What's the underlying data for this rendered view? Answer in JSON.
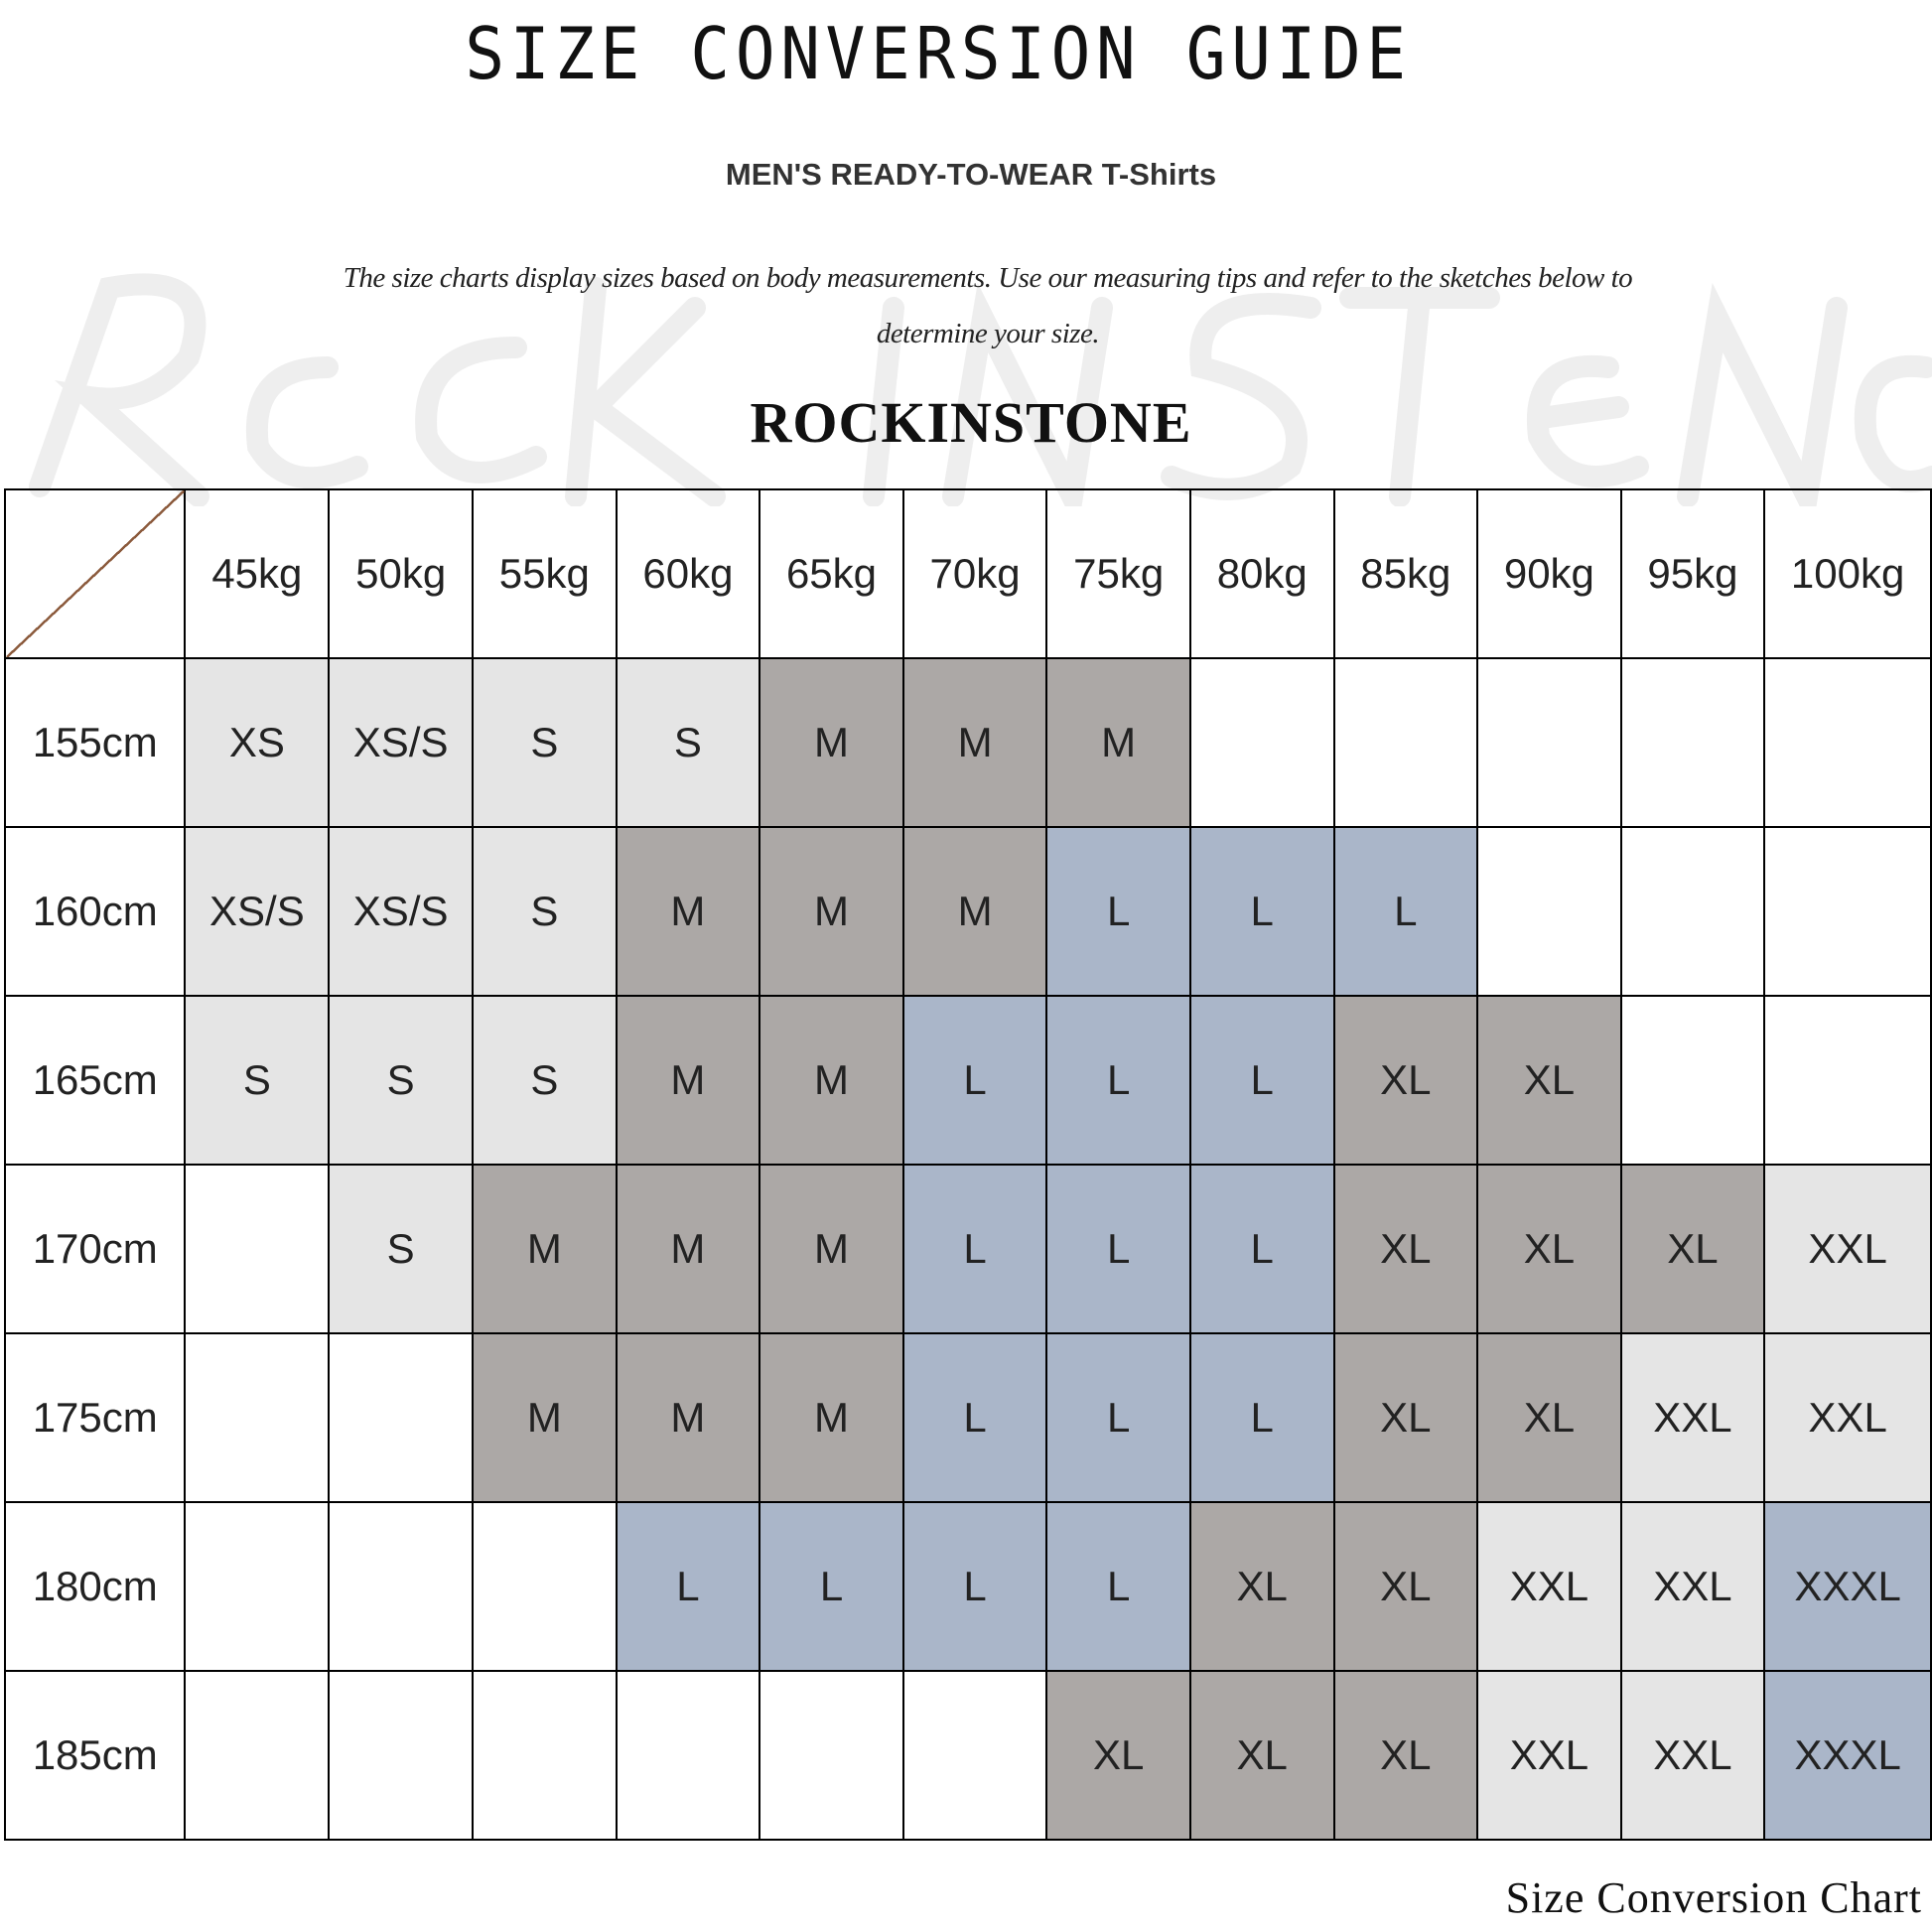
{
  "title": "SIZE CONVERSION GUIDE",
  "subtitle": "MEN'S READY-TO-WEAR T-Shirts",
  "description": "The size charts display sizes based on body measurements. Use our measuring tips and refer to the sketches below to determine your size.",
  "watermark": "Rockinstone",
  "brand": "ROCKINSTONE",
  "footer": "Size Conversion Chart",
  "size_colors": {
    "XS": "#e5e5e5",
    "XS/S": "#e5e5e5",
    "S": "#e5e5e5",
    "M": "#aca8a6",
    "L": "#aab6c9",
    "XL": "#aca8a6",
    "XXL": "#e5e5e5",
    "XXXL": "#aab6c9"
  },
  "table": {
    "weights": [
      "45kg",
      "50kg",
      "55kg",
      "60kg",
      "65kg",
      "70kg",
      "75kg",
      "80kg",
      "85kg",
      "90kg",
      "95kg",
      "100kg"
    ],
    "rows": [
      {
        "height": "155cm",
        "sizes": [
          "XS",
          "XS/S",
          "S",
          "S",
          "M",
          "M",
          "M",
          "",
          "",
          "",
          "",
          ""
        ]
      },
      {
        "height": "160cm",
        "sizes": [
          "XS/S",
          "XS/S",
          "S",
          "M",
          "M",
          "M",
          "L",
          "L",
          "L",
          "",
          "",
          ""
        ]
      },
      {
        "height": "165cm",
        "sizes": [
          "S",
          "S",
          "S",
          "M",
          "M",
          "L",
          "L",
          "L",
          "XL",
          "XL",
          "",
          ""
        ]
      },
      {
        "height": "170cm",
        "sizes": [
          "",
          "S",
          "M",
          "M",
          "M",
          "L",
          "L",
          "L",
          "XL",
          "XL",
          "XL",
          "XXL"
        ]
      },
      {
        "height": "175cm",
        "sizes": [
          "",
          "",
          "M",
          "M",
          "M",
          "L",
          "L",
          "L",
          "XL",
          "XL",
          "XXL",
          "XXL"
        ]
      },
      {
        "height": "180cm",
        "sizes": [
          "",
          "",
          "",
          "L",
          "L",
          "L",
          "L",
          "XL",
          "XL",
          "XXL",
          "XXL",
          "XXXL"
        ]
      },
      {
        "height": "185cm",
        "sizes": [
          "",
          "",
          "",
          "",
          "",
          "",
          "XL",
          "XL",
          "XL",
          "XXL",
          "XXL",
          "XXXL"
        ]
      }
    ]
  }
}
